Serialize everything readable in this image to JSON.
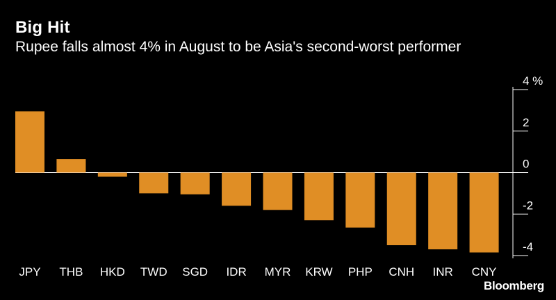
{
  "header": {
    "title": "Big Hit",
    "subtitle": "Rupee falls almost 4% in August to be Asia's second-worst performer"
  },
  "source": "Bloomberg",
  "colors": {
    "background": "#000000",
    "bar": "#E08E25",
    "text": "#FFFFFF",
    "axis": "#FFFFFF"
  },
  "chart_data": {
    "type": "bar",
    "title": "Big Hit",
    "subtitle": "Rupee falls almost 4% in August to be Asia's second-worst performer",
    "categories": [
      "JPY",
      "THB",
      "HKD",
      "TWD",
      "SGD",
      "IDR",
      "MYR",
      "KRW",
      "PHP",
      "CNH",
      "INR",
      "CNY"
    ],
    "values": [
      2.95,
      0.65,
      -0.2,
      -1.0,
      -1.05,
      -1.6,
      -1.8,
      -2.3,
      -2.65,
      -3.5,
      -3.7,
      -3.85
    ],
    "ylim": [
      -4,
      4
    ],
    "yticks": [
      4,
      2,
      0,
      -2,
      -4
    ],
    "ytick_labels": [
      "4 %",
      "2",
      "0",
      "-2",
      "-4"
    ],
    "yaxis_position": "right",
    "xlabel": "",
    "ylabel": "%",
    "grid": false,
    "legend": "none"
  }
}
